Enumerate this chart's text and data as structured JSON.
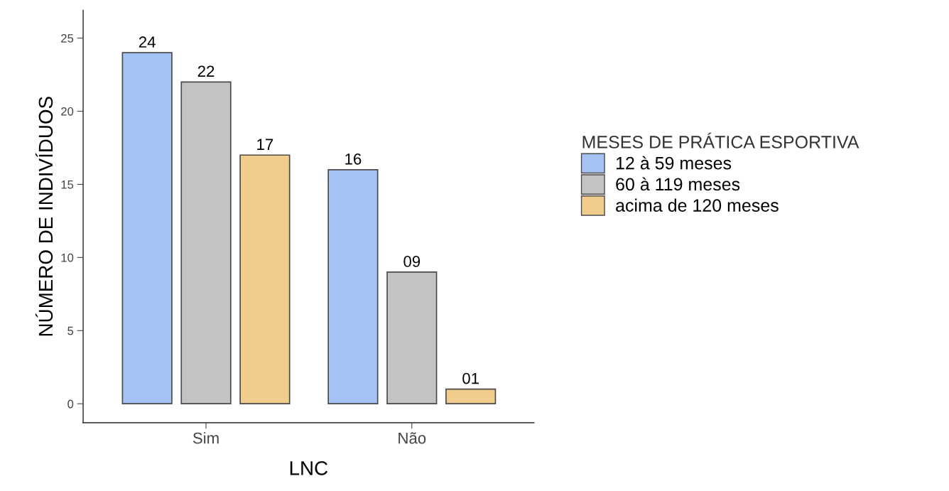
{
  "chart_data": {
    "type": "bar",
    "xlabel": "LNC",
    "ylabel": "NÚMERO DE INDIVÍDUOS",
    "legend_title": "MESES DE PRÁTICA ESPORTIVA",
    "categories": [
      "Sim",
      "Não"
    ],
    "series": [
      {
        "name": "12 à 59 meses",
        "color": "#a4c2f4",
        "values": [
          24,
          16
        ],
        "value_labels": [
          "24",
          "16"
        ]
      },
      {
        "name": "60 à 119 meses",
        "color": "#c3c3c3",
        "values": [
          22,
          9
        ],
        "value_labels": [
          "22",
          "09"
        ]
      },
      {
        "name": "acima de 120 meses",
        "color": "#f0cd8c",
        "values": [
          17,
          1
        ],
        "value_labels": [
          "17",
          "01"
        ]
      }
    ],
    "ylim": [
      -1.3,
      26.9
    ],
    "yticks": [
      0,
      5,
      10,
      15,
      20,
      25
    ],
    "grid": false,
    "legend": "right"
  }
}
